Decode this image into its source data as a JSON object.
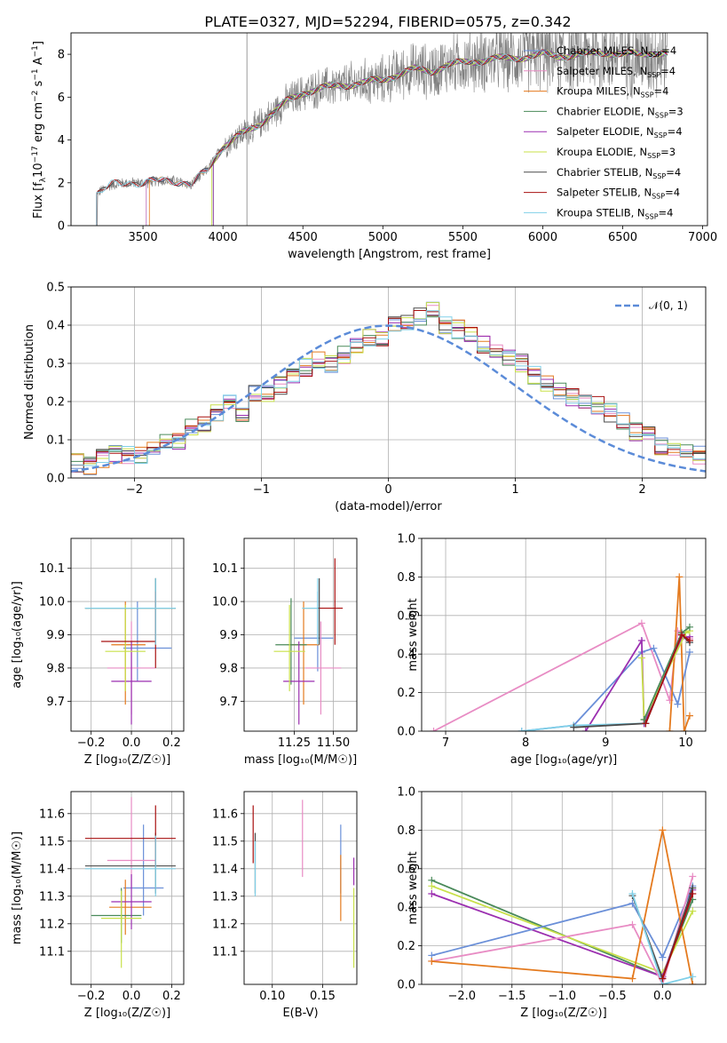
{
  "title": "PLATE=0327, MJD=52294, FIBERID=0575, z=0.342",
  "colors": {
    "Chabrier MILES": "#6a8fd8",
    "Salpeter MILES": "#e88cc4",
    "Kroupa MILES": "#e47a1e",
    "Chabrier ELODIE": "#4a8a5a",
    "Salpeter ELODIE": "#9b2fb0",
    "Kroupa ELODIE": "#c8e04a",
    "Chabrier STELIB": "#4a4a4a",
    "Salpeter STELIB": "#a81010",
    "Kroupa STELIB": "#80d0e8",
    "normal": "#5b8bd8",
    "data": "#808080"
  },
  "chart_data": [
    {
      "type": "line",
      "name": "spectrum",
      "xlabel": "wavelength [Angstrom, rest frame]",
      "ylabel": "Flux [f",
      "ylabel_sub": "λ",
      "ylabel_rest": "10",
      "ylabel_sup1": "−17",
      "ylabel_mid": " erg cm",
      "ylabel_sup2": "−2",
      "ylabel_mid2": " s",
      "ylabel_sup3": "−1",
      "ylabel_mid3": " A",
      "ylabel_sup4": "−1",
      "ylabel_end": "]",
      "xlim": [
        3050,
        7030
      ],
      "ylim": [
        0,
        9
      ],
      "xticks": [
        3500,
        4000,
        4500,
        5000,
        5500,
        6000,
        6500,
        7000
      ],
      "yticks": [
        0,
        2,
        4,
        6,
        8
      ],
      "grid": true,
      "legend_placement": "right",
      "legend": [
        {
          "prefix": "Chabrier MILES, N",
          "nssp": 4
        },
        {
          "prefix": "Salpeter MILES, N",
          "nssp": 4
        },
        {
          "prefix": "Kroupa MILES, N",
          "nssp": 4
        },
        {
          "prefix": "Chabrier ELODIE, N",
          "nssp": 3
        },
        {
          "prefix": "Salpeter ELODIE, N",
          "nssp": 4
        },
        {
          "prefix": "Kroupa ELODIE, N",
          "nssp": 3
        },
        {
          "prefix": "Chabrier STELIB, N",
          "nssp": 4
        },
        {
          "prefix": "Salpeter STELIB, N",
          "nssp": 4
        },
        {
          "prefix": "Kroupa STELIB, N",
          "nssp": 4
        }
      ],
      "ssp_sub": "SSP",
      "model_continuum": {
        "x": [
          3210,
          3300,
          3400,
          3500,
          3600,
          3700,
          3800,
          3900,
          4000,
          4100,
          4200,
          4300,
          4400,
          4500,
          4600,
          4700,
          4800,
          4900,
          5000,
          5100,
          5200,
          5300,
          5400,
          5500,
          5600,
          5700,
          5800,
          5900,
          6000,
          6100,
          6200,
          6300,
          6400,
          6500,
          6600,
          6700,
          6780
        ],
        "y": [
          1.5,
          1.9,
          2.0,
          2.0,
          2.1,
          2.1,
          1.9,
          2.6,
          3.7,
          4.2,
          4.6,
          5.2,
          5.8,
          6.2,
          6.4,
          6.5,
          6.6,
          6.7,
          6.8,
          7.1,
          7.3,
          7.2,
          7.5,
          7.6,
          7.7,
          7.8,
          7.8,
          7.9,
          8.0,
          7.9,
          8.0,
          8.0,
          8.1,
          8.0,
          8.0,
          8.1,
          8.0
        ]
      },
      "model_starts": {
        "Chabrier MILES": 3520,
        "Salpeter MILES": 3520,
        "Kroupa MILES": 3540,
        "Chabrier ELODIE": 3940,
        "Salpeter ELODIE": 3940,
        "Kroupa ELODIE": 3930,
        "Chabrier STELIB": 3210,
        "Salpeter STELIB": 3210,
        "Kroupa STELIB": 3210
      },
      "vline": 4150
    },
    {
      "type": "histogram",
      "name": "residuals",
      "xlabel": "(data-model)/error",
      "ylabel": "Normed distribution",
      "xlim": [
        -2.5,
        2.5
      ],
      "ylim": [
        0,
        0.5
      ],
      "xticks": [
        -2,
        -1,
        0,
        1,
        2
      ],
      "yticks": [
        0.0,
        0.1,
        0.2,
        0.3,
        0.4,
        0.5
      ],
      "grid": true,
      "legend_placement": "top-right",
      "legend": "𝒩(0, 1)",
      "bin_edges_start": -2.6,
      "bin_width": 0.1,
      "base_values": [
        0.03,
        0.04,
        0.03,
        0.05,
        0.06,
        0.06,
        0.06,
        0.07,
        0.09,
        0.1,
        0.13,
        0.14,
        0.17,
        0.2,
        0.17,
        0.22,
        0.22,
        0.24,
        0.27,
        0.29,
        0.31,
        0.3,
        0.32,
        0.34,
        0.37,
        0.36,
        0.4,
        0.41,
        0.42,
        0.44,
        0.4,
        0.39,
        0.37,
        0.35,
        0.33,
        0.31,
        0.3,
        0.27,
        0.25,
        0.23,
        0.21,
        0.2,
        0.19,
        0.17,
        0.15,
        0.12,
        0.11,
        0.08,
        0.07,
        0.07,
        0.06,
        0.05,
        0.04
      ]
    },
    {
      "type": "errorbar",
      "name": "age-vs-Z",
      "xlabel": "Z [log₁₀(Z/Z☉)]",
      "ylabel": "age  [log₁₀(age/yr)]",
      "xlim": [
        -0.3,
        0.26
      ],
      "ylim": [
        9.61,
        10.19
      ],
      "xticks": [
        -0.2,
        0.0,
        0.2
      ],
      "yticks": [
        9.7,
        9.8,
        9.9,
        10.0,
        10.1
      ],
      "points": [
        {
          "model": "Chabrier MILES",
          "x": 0.03,
          "xerr": [
            0.07,
            0.17
          ],
          "y": 9.86,
          "yerr": [
            0.1,
            0.14
          ]
        },
        {
          "model": "Salpeter MILES",
          "x": 0.0,
          "xerr": [
            0.12,
            0.12
          ],
          "y": 9.8,
          "yerr": [
            0.14,
            0.14
          ]
        },
        {
          "model": "Kroupa MILES",
          "x": -0.03,
          "xerr": [
            0.07,
            0.1
          ],
          "y": 9.87,
          "yerr": [
            0.18,
            0.13
          ]
        },
        {
          "model": "Chabrier ELODIE",
          "x": 0.12,
          "xerr": [
            0.35,
            0.1
          ],
          "y": 9.98,
          "yerr": [
            0.11,
            0.09
          ]
        },
        {
          "model": "Salpeter ELODIE",
          "x": 0.0,
          "xerr": [
            0.1,
            0.1
          ],
          "y": 9.76,
          "yerr": [
            0.13,
            0.12
          ]
        },
        {
          "model": "Kroupa ELODIE",
          "x": -0.03,
          "xerr": [
            0.1,
            0.1
          ],
          "y": 9.85,
          "yerr": [
            0.12,
            0.14
          ]
        },
        {
          "model": "Chabrier STELIB",
          "x": 0.12,
          "xerr": [
            0.35,
            0.1
          ],
          "y": 9.98,
          "yerr": [
            0.11,
            0.09
          ]
        },
        {
          "model": "Salpeter STELIB",
          "x": 0.12,
          "xerr": [
            0.27,
            0.0
          ],
          "y": 9.88,
          "yerr": [
            0.08,
            0.15
          ]
        },
        {
          "model": "Kroupa STELIB",
          "x": 0.12,
          "xerr": [
            0.35,
            0.1
          ],
          "y": 9.98,
          "yerr": [
            0.11,
            0.09
          ]
        }
      ]
    },
    {
      "type": "errorbar",
      "name": "age-vs-mass",
      "xlabel": "mass [log₁₀(M/M☉)]",
      "ylabel": "",
      "xlim": [
        10.93,
        11.65
      ],
      "ylim": [
        9.61,
        10.19
      ],
      "xticks": [
        11.25,
        11.5
      ],
      "yticks": [
        9.7,
        9.8,
        9.9,
        10.0,
        10.1
      ],
      "points": [
        {
          "model": "Chabrier MILES",
          "x": 11.4,
          "xerr": [
            0.15,
            0.1
          ],
          "y": 9.89,
          "yerr": [
            0.1,
            0.14
          ]
        },
        {
          "model": "Salpeter MILES",
          "x": 11.42,
          "xerr": [
            0.1,
            0.13
          ],
          "y": 9.8,
          "yerr": [
            0.14,
            0.14
          ]
        },
        {
          "model": "Kroupa MILES",
          "x": 11.31,
          "xerr": [
            0.1,
            0.1
          ],
          "y": 9.87,
          "yerr": [
            0.18,
            0.13
          ]
        },
        {
          "model": "Chabrier ELODIE",
          "x": 11.23,
          "xerr": [
            0.1,
            0.1
          ],
          "y": 9.87,
          "yerr": [
            0.12,
            0.14
          ]
        },
        {
          "model": "Salpeter ELODIE",
          "x": 11.28,
          "xerr": [
            0.1,
            0.1
          ],
          "y": 9.76,
          "yerr": [
            0.13,
            0.12
          ]
        },
        {
          "model": "Kroupa ELODIE",
          "x": 11.22,
          "xerr": [
            0.1,
            0.1
          ],
          "y": 9.85,
          "yerr": [
            0.12,
            0.14
          ]
        },
        {
          "model": "Chabrier STELIB",
          "x": 11.41,
          "xerr": [
            0.1,
            0.0
          ],
          "y": 9.98,
          "yerr": [
            0.11,
            0.09
          ]
        },
        {
          "model": "Salpeter STELIB",
          "x": 11.51,
          "xerr": [
            0.1,
            0.05
          ],
          "y": 9.98,
          "yerr": [
            0.11,
            0.15
          ]
        },
        {
          "model": "Kroupa STELIB",
          "x": 11.4,
          "xerr": [
            0.1,
            0.0
          ],
          "y": 9.98,
          "yerr": [
            0.11,
            0.09
          ]
        }
      ]
    },
    {
      "type": "line",
      "name": "weight-vs-age",
      "xlabel": "age  [log₁₀(age/yr)]",
      "ylabel": "mass weight",
      "xlim": [
        6.7,
        10.25
      ],
      "ylim": [
        0,
        1.0
      ],
      "xticks": [
        7,
        8,
        9,
        10
      ],
      "yticks": [
        0.0,
        0.2,
        0.4,
        0.6,
        0.8,
        1.0
      ],
      "series": [
        {
          "model": "Salpeter MILES",
          "x": [
            6.85,
            9.45,
            9.8,
            9.9,
            10.05
          ],
          "y": [
            0.0,
            0.56,
            0.16,
            0.52,
            0.48
          ]
        },
        {
          "model": "Chabrier MILES",
          "x": [
            7.95,
            8.6,
            9.45,
            9.6,
            9.9,
            10.05
          ],
          "y": [
            0.0,
            0.03,
            0.41,
            0.43,
            0.14,
            0.41
          ]
        },
        {
          "model": "Kroupa MILES",
          "x": [
            9.8,
            9.92,
            9.98,
            10.05
          ],
          "y": [
            0.0,
            0.8,
            0.0,
            0.08
          ]
        },
        {
          "model": "Salpeter ELODIE",
          "x": [
            8.75,
            9.45,
            9.48,
            9.95,
            10.05
          ],
          "y": [
            0.0,
            0.47,
            0.04,
            0.48,
            0.49
          ]
        },
        {
          "model": "Kroupa ELODIE",
          "x": [
            9.45,
            9.48,
            10.0,
            10.05
          ],
          "y": [
            0.38,
            0.06,
            0.51,
            0.52
          ]
        },
        {
          "model": "Chabrier ELODIE",
          "x": [
            9.48,
            9.95,
            10.05
          ],
          "y": [
            0.06,
            0.51,
            0.54
          ]
        },
        {
          "model": "Kroupa STELIB",
          "x": [
            7.95,
            8.6,
            9.5,
            9.95,
            10.05
          ],
          "y": [
            0.0,
            0.03,
            0.04,
            0.5,
            0.46
          ]
        },
        {
          "model": "Chabrier STELIB",
          "x": [
            8.6,
            9.5,
            9.95,
            10.05
          ],
          "y": [
            0.02,
            0.04,
            0.5,
            0.46
          ]
        },
        {
          "model": "Salpeter STELIB",
          "x": [
            9.5,
            9.95,
            10.05
          ],
          "y": [
            0.04,
            0.5,
            0.47
          ]
        }
      ]
    },
    {
      "type": "errorbar",
      "name": "mass-vs-Z",
      "xlabel": "Z [log₁₀(Z/Z☉)]",
      "ylabel": "mass [log₁₀(M/M☉)]",
      "xlim": [
        -0.3,
        0.26
      ],
      "ylim": [
        10.98,
        11.68
      ],
      "xticks": [
        -0.2,
        0.0,
        0.2
      ],
      "yticks": [
        11.1,
        11.2,
        11.3,
        11.4,
        11.5,
        11.6
      ],
      "points": [
        {
          "model": "Chabrier MILES",
          "x": 0.06,
          "xerr": [
            0.1,
            0.1
          ],
          "y": 11.33,
          "yerr": [
            0.1,
            0.23
          ]
        },
        {
          "model": "Salpeter MILES",
          "x": 0.0,
          "xerr": [
            0.12,
            0.12
          ],
          "y": 11.43,
          "yerr": [
            0.1,
            0.23
          ]
        },
        {
          "model": "Kroupa MILES",
          "x": -0.03,
          "xerr": [
            0.08,
            0.13
          ],
          "y": 11.26,
          "yerr": [
            0.1,
            0.1
          ]
        },
        {
          "model": "Chabrier ELODIE",
          "x": -0.05,
          "xerr": [
            0.15,
            0.1
          ],
          "y": 11.23,
          "yerr": [
            0.1,
            0.1
          ]
        },
        {
          "model": "Salpeter ELODIE",
          "x": 0.0,
          "xerr": [
            0.1,
            0.1
          ],
          "y": 11.28,
          "yerr": [
            0.1,
            0.1
          ]
        },
        {
          "model": "Kroupa ELODIE",
          "x": -0.05,
          "xerr": [
            0.1,
            0.1
          ],
          "y": 11.22,
          "yerr": [
            0.18,
            0.1
          ]
        },
        {
          "model": "Chabrier STELIB",
          "x": 0.12,
          "xerr": [
            0.35,
            0.1
          ],
          "y": 11.41,
          "yerr": [
            0.1,
            0.12
          ]
        },
        {
          "model": "Salpeter STELIB",
          "x": 0.12,
          "xerr": [
            0.35,
            0.1
          ],
          "y": 11.51,
          "yerr": [
            0.1,
            0.12
          ]
        },
        {
          "model": "Kroupa STELIB",
          "x": 0.12,
          "xerr": [
            0.35,
            0.1
          ],
          "y": 11.4,
          "yerr": [
            0.1,
            0.12
          ]
        }
      ]
    },
    {
      "type": "errorbar",
      "name": "mass-vs-EBV",
      "xlabel": "E(B-V)",
      "ylabel": "",
      "xlim": [
        0.072,
        0.184
      ],
      "ylim": [
        10.98,
        11.68
      ],
      "xticks": [
        0.1,
        0.15
      ],
      "yticks": [
        11.1,
        11.2,
        11.3,
        11.4,
        11.5,
        11.6
      ],
      "points": [
        {
          "model": "Chabrier MILES",
          "x": 0.168,
          "y": 11.43,
          "yerr": [
            0.12,
            0.13
          ]
        },
        {
          "model": "Salpeter MILES",
          "x": 0.13,
          "y": 11.51,
          "yerr": [
            0.14,
            0.14
          ]
        },
        {
          "model": "Kroupa MILES",
          "x": 0.168,
          "y": 11.33,
          "yerr": [
            0.12,
            0.12
          ]
        },
        {
          "model": "Salpeter ELODIE",
          "x": 0.181,
          "y": 11.39,
          "yerr": [
            0.05,
            0.05
          ]
        },
        {
          "model": "Kroupa ELODIE",
          "x": 0.181,
          "y": 11.18,
          "yerr": [
            0.14,
            0.15
          ]
        },
        {
          "model": "Chabrier STELIB",
          "x": 0.083,
          "y": 11.42,
          "yerr": [
            0.11,
            0.11
          ]
        },
        {
          "model": "Salpeter STELIB",
          "x": 0.081,
          "y": 11.51,
          "yerr": [
            0.09,
            0.12
          ]
        },
        {
          "model": "Kroupa STELIB",
          "x": 0.083,
          "y": 11.4,
          "yerr": [
            0.1,
            0.1
          ]
        }
      ]
    },
    {
      "type": "line",
      "name": "weight-vs-Z",
      "xlabel": "Z [log₁₀(Z/Z☉)]",
      "ylabel": "mass weight",
      "xlim": [
        -2.4,
        0.43
      ],
      "ylim": [
        0,
        1.0
      ],
      "xticks": [
        -2.0,
        -1.5,
        -1.0,
        -0.5,
        0.0
      ],
      "yticks": [
        0.0,
        0.2,
        0.4,
        0.6,
        0.8,
        1.0
      ],
      "series": [
        {
          "model": "Chabrier ELODIE",
          "x": [
            -2.3,
            0.0,
            0.3
          ],
          "y": [
            0.54,
            0.04,
            0.44
          ]
        },
        {
          "model": "Kroupa ELODIE",
          "x": [
            -2.3,
            0.0,
            0.3
          ],
          "y": [
            0.51,
            0.06,
            0.38
          ]
        },
        {
          "model": "Salpeter ELODIE",
          "x": [
            -2.3,
            0.0,
            0.3
          ],
          "y": [
            0.47,
            0.04,
            0.49
          ]
        },
        {
          "model": "Chabrier MILES",
          "x": [
            -2.3,
            -0.3,
            0.0,
            0.3
          ],
          "y": [
            0.15,
            0.42,
            0.14,
            0.51
          ]
        },
        {
          "model": "Salpeter MILES",
          "x": [
            -2.3,
            -0.3,
            0.0,
            0.3
          ],
          "y": [
            0.12,
            0.31,
            0.0,
            0.56
          ]
        },
        {
          "model": "Kroupa MILES",
          "x": [
            -2.3,
            -0.3,
            0.0,
            0.3
          ],
          "y": [
            0.12,
            0.03,
            0.8,
            0.0
          ]
        },
        {
          "model": "Chabrier STELIB",
          "x": [
            -0.3,
            0.0,
            0.3
          ],
          "y": [
            0.46,
            0.03,
            0.5
          ]
        },
        {
          "model": "Kroupa STELIB",
          "x": [
            -0.3,
            0.0,
            0.3
          ],
          "y": [
            0.47,
            0.0,
            0.04
          ]
        },
        {
          "model": "Salpeter STELIB",
          "x": [
            0.0,
            0.3
          ],
          "y": [
            0.03,
            0.47
          ]
        }
      ]
    }
  ]
}
